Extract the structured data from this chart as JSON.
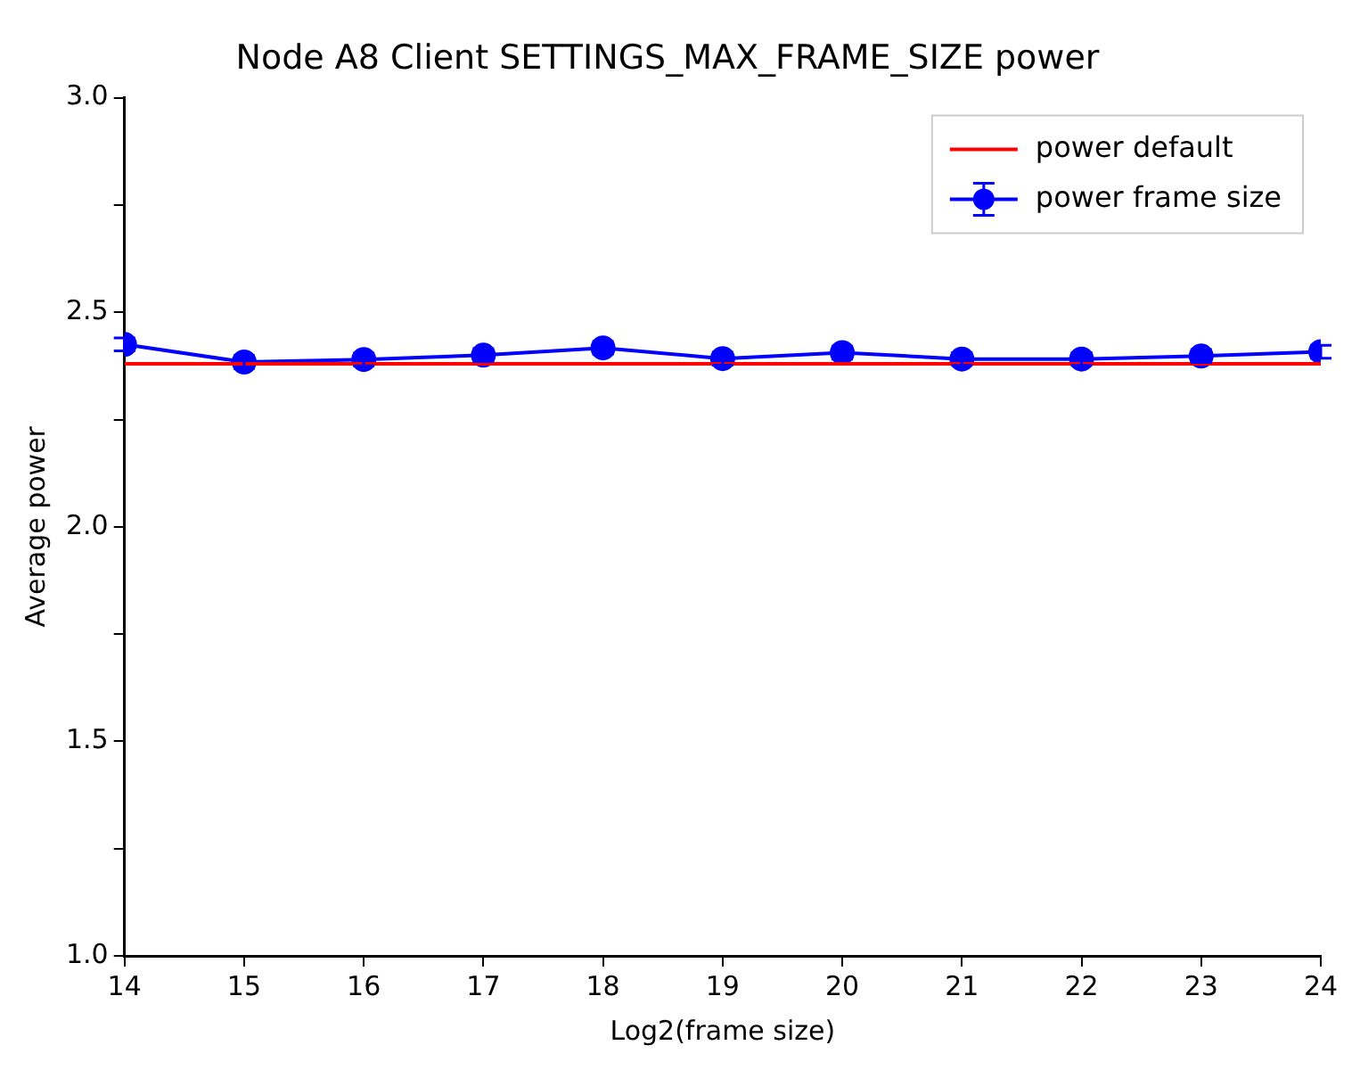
{
  "chart_data": {
    "type": "line",
    "title": "Node A8 Client SETTINGS_MAX_FRAME_SIZE power",
    "xlabel": "Log2(frame size)",
    "ylabel": "Average power",
    "x": [
      14,
      15,
      16,
      17,
      18,
      19,
      20,
      21,
      22,
      23,
      24
    ],
    "series": [
      {
        "name": "power default",
        "color": "#ff0000",
        "marker": "none",
        "values": [
          2.38,
          2.38,
          2.38,
          2.38,
          2.38,
          2.38,
          2.38,
          2.38,
          2.38,
          2.38,
          2.38
        ]
      },
      {
        "name": "power frame size",
        "color": "#0000ff",
        "marker": "circle",
        "values": [
          2.425,
          2.384,
          2.39,
          2.4,
          2.417,
          2.392,
          2.406,
          2.391,
          2.391,
          2.398,
          2.408
        ],
        "errors": [
          0.015,
          0.015,
          0.015,
          0.015,
          0.015,
          0.015,
          0.015,
          0.015,
          0.015,
          0.015,
          0.015
        ]
      }
    ],
    "xlim": [
      14,
      24
    ],
    "xticks": [
      14,
      15,
      16,
      17,
      18,
      19,
      20,
      21,
      22,
      23,
      24
    ],
    "ylim": [
      1,
      3
    ],
    "yticks": [
      {
        "value": 1,
        "label": "1.0"
      },
      {
        "value": 1.25,
        "label": null
      },
      {
        "value": 1.5,
        "label": "1.5"
      },
      {
        "value": 1.75,
        "label": null
      },
      {
        "value": 2,
        "label": "2.0"
      },
      {
        "value": 2.25,
        "label": null
      },
      {
        "value": 2.5,
        "label": "2.5"
      },
      {
        "value": 2.75,
        "label": null
      },
      {
        "value": 3,
        "label": "3.0"
      }
    ],
    "grid": false,
    "legend": "top right",
    "line_style": "solid"
  }
}
